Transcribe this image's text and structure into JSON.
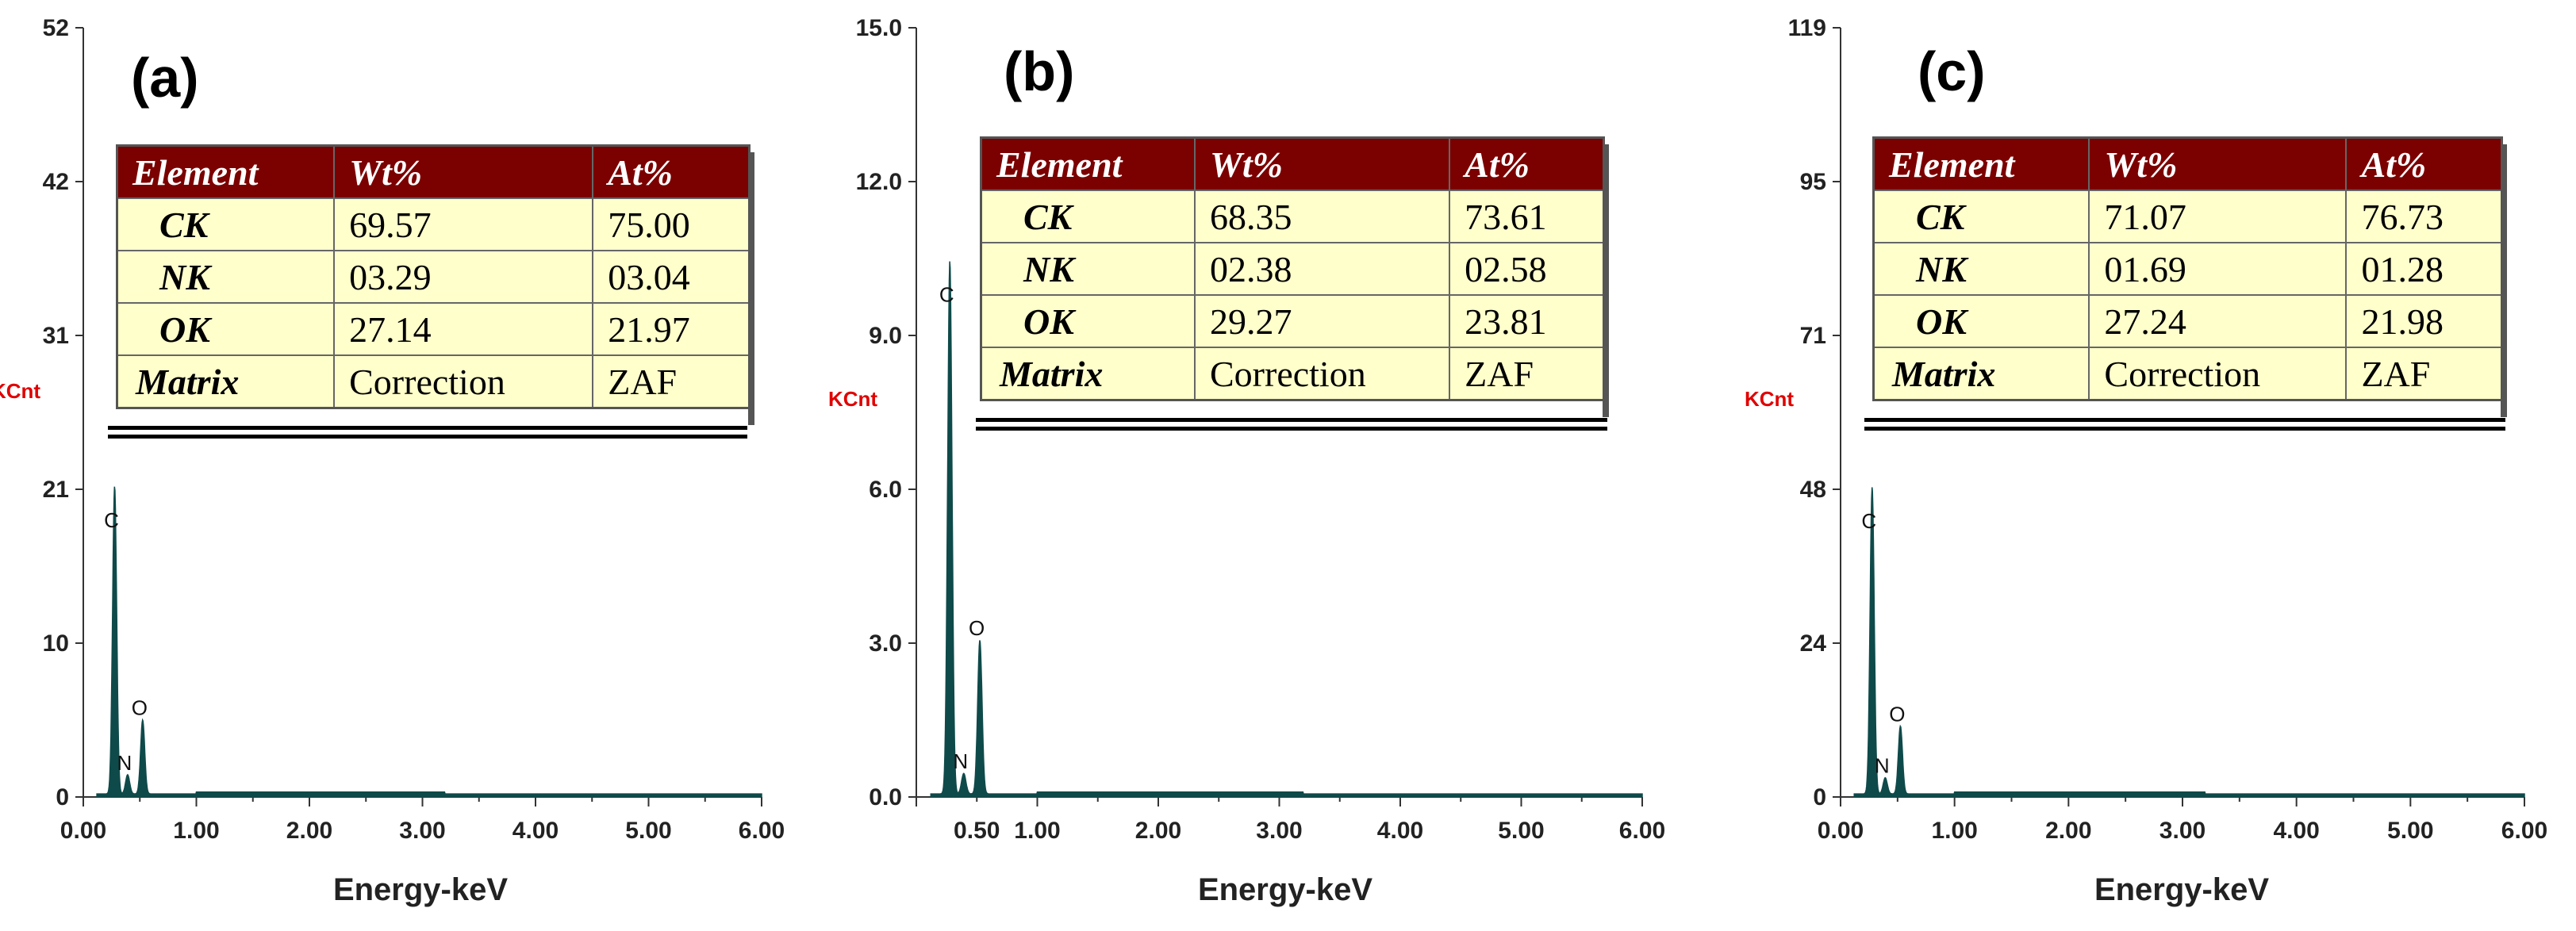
{
  "chart_data": [
    {
      "type": "line",
      "panel_label": "(a)",
      "ylabel": "KCnt",
      "xlabel": "Energy-keV",
      "ylim": [
        0,
        52
      ],
      "xlim": [
        0,
        6
      ],
      "yticks": [
        "0",
        "10",
        "21",
        "31",
        "42",
        "52"
      ],
      "ytick_values": [
        0,
        10.4,
        20.8,
        31.2,
        41.6,
        52
      ],
      "xticks": [
        "0.00",
        "1.00",
        "2.00",
        "3.00",
        "4.00",
        "5.00",
        "6.00"
      ],
      "xtick_values": [
        0,
        1,
        2,
        3,
        4,
        5,
        6
      ],
      "peaks": [
        {
          "label": "C",
          "x": 0.277,
          "y": 20.8
        },
        {
          "label": "N",
          "x": 0.392,
          "y": 1.3
        },
        {
          "label": "O",
          "x": 0.525,
          "y": 5.0
        }
      ],
      "table": {
        "headers": [
          "Element",
          "Wt%",
          "At%"
        ],
        "rows": [
          [
            "CK",
            "69.57",
            "75.00"
          ],
          [
            "NK",
            "03.29",
            "03.04"
          ],
          [
            "OK",
            "27.14",
            "21.97"
          ],
          [
            "Matrix",
            "Correction",
            "ZAF"
          ]
        ]
      }
    },
    {
      "type": "line",
      "panel_label": "(b)",
      "ylabel": "KCnt",
      "xlabel": "Energy-keV",
      "ylim": [
        0,
        15
      ],
      "xlim": [
        0,
        6
      ],
      "yticks": [
        "0.0",
        "3.0",
        "6.0",
        "9.0",
        "12.0",
        "15.0"
      ],
      "ytick_values": [
        0,
        3,
        6,
        9,
        12,
        15
      ],
      "xticks": [
        "0.50",
        "1.00",
        "2.00",
        "3.00",
        "4.00",
        "5.00",
        "6.00"
      ],
      "xtick_values": [
        0.5,
        1,
        2,
        3,
        4,
        5,
        6
      ],
      "peaks": [
        {
          "label": "C",
          "x": 0.277,
          "y": 10.4
        },
        {
          "label": "N",
          "x": 0.392,
          "y": 0.4
        },
        {
          "label": "O",
          "x": 0.525,
          "y": 3.0
        }
      ],
      "table": {
        "headers": [
          "Element",
          "Wt%",
          "At%"
        ],
        "rows": [
          [
            "CK",
            "68.35",
            "73.61"
          ],
          [
            "NK",
            "02.38",
            "02.58"
          ],
          [
            "OK",
            "29.27",
            "23.81"
          ],
          [
            "Matrix",
            "Correction",
            "ZAF"
          ]
        ]
      }
    },
    {
      "type": "line",
      "panel_label": "(c)",
      "ylabel": "KCnt",
      "xlabel": "Energy-keV",
      "ylim": [
        0,
        119
      ],
      "xlim": [
        0,
        6
      ],
      "yticks": [
        "0",
        "24",
        "48",
        "71",
        "95",
        "119"
      ],
      "ytick_values": [
        0,
        23.8,
        47.6,
        71.4,
        95.2,
        119
      ],
      "xticks": [
        "0.00",
        "1.00",
        "2.00",
        "3.00",
        "4.00",
        "5.00",
        "6.00"
      ],
      "xtick_values": [
        0,
        1,
        2,
        3,
        4,
        5,
        6
      ],
      "peaks": [
        {
          "label": "C",
          "x": 0.277,
          "y": 47.5
        },
        {
          "label": "N",
          "x": 0.392,
          "y": 2.5
        },
        {
          "label": "O",
          "x": 0.525,
          "y": 10.5
        }
      ],
      "table": {
        "headers": [
          "Element",
          "Wt%",
          "At%"
        ],
        "rows": [
          [
            "CK",
            "71.07",
            "76.73"
          ],
          [
            "NK",
            "01.69",
            "01.28"
          ],
          [
            "OK",
            "27.24",
            "21.98"
          ],
          [
            "Matrix",
            "Correction",
            "ZAF"
          ]
        ]
      }
    }
  ],
  "colors": {
    "spectrum": "#0f4a4a",
    "header_bg": "#7b0000",
    "table_bg": "#ffffcc",
    "kcnt_label": "#e00000"
  }
}
